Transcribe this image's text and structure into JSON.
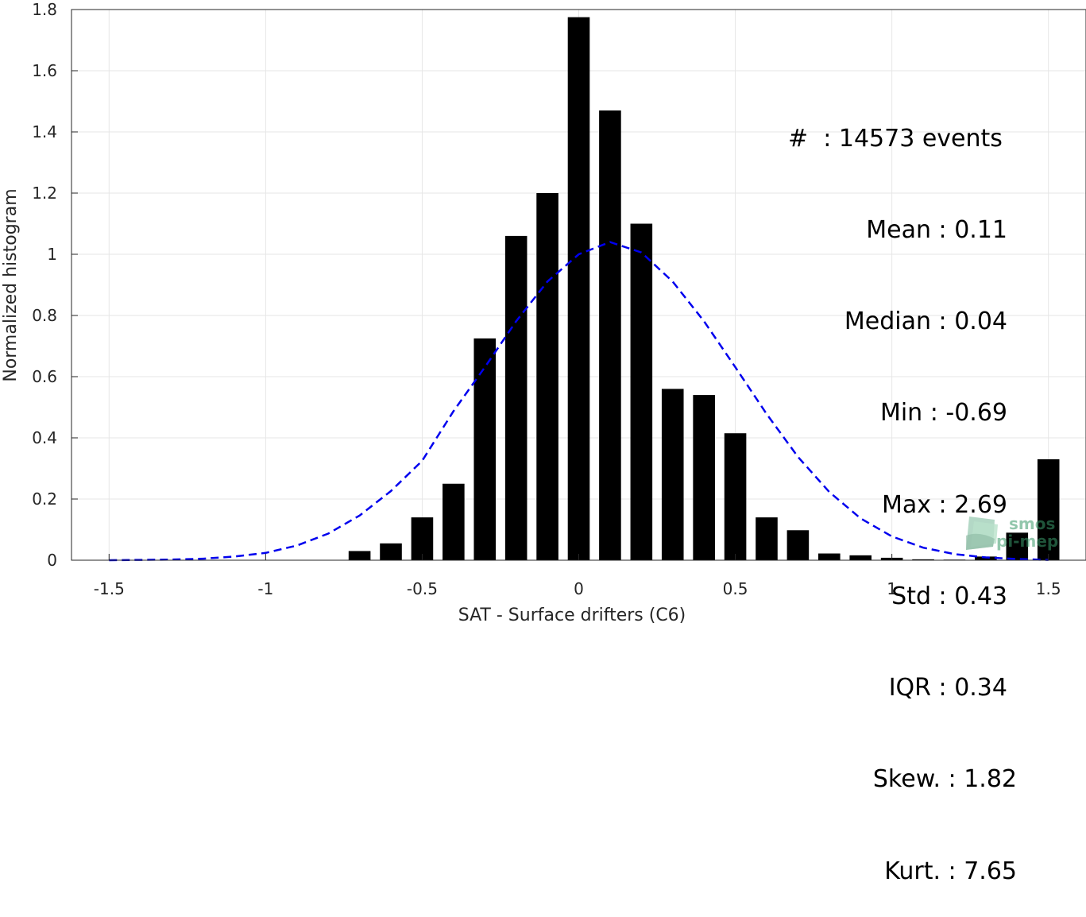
{
  "chart_data": {
    "type": "bar",
    "xlabel": "SAT - Surface drifters (C6)",
    "ylabel": "Normalized histogram",
    "xlim": [
      -1.62,
      1.62
    ],
    "ylim": [
      0,
      1.8
    ],
    "xticks": [
      -1.5,
      -1,
      -0.5,
      0,
      0.5,
      1,
      1.5
    ],
    "xtick_labels": [
      "-1.5",
      "-1",
      "-0.5",
      "0",
      "0.5",
      "1",
      "1.5"
    ],
    "yticks": [
      0,
      0.2,
      0.4,
      0.6,
      0.8,
      1,
      1.2,
      1.4,
      1.6,
      1.8
    ],
    "ytick_labels": [
      "0",
      "0.2",
      "0.4",
      "0.6",
      "0.8",
      "1",
      "1.2",
      "1.4",
      "1.6",
      "1.8"
    ],
    "grid": true,
    "bar_color": "#000000",
    "fit_color": "#0000ee",
    "x": [
      -0.7,
      -0.6,
      -0.5,
      -0.4,
      -0.3,
      -0.2,
      -0.1,
      0.0,
      0.1,
      0.2,
      0.3,
      0.4,
      0.5,
      0.6,
      0.7,
      0.8,
      0.9,
      1.0,
      1.1,
      1.2,
      1.3,
      1.4,
      1.5
    ],
    "values": [
      0.03,
      0.055,
      0.14,
      0.25,
      0.725,
      1.06,
      1.2,
      1.775,
      1.47,
      1.1,
      0.56,
      0.54,
      0.415,
      0.14,
      0.098,
      0.022,
      0.016,
      0.008,
      0.003,
      0.002,
      0.012,
      0.09,
      0.33
    ],
    "fit": {
      "type": "line",
      "style": "dashed",
      "name": "",
      "x": [
        -1.5,
        -1.4,
        -1.3,
        -1.2,
        -1.1,
        -1.0,
        -0.9,
        -0.8,
        -0.7,
        -0.6,
        -0.5,
        -0.4,
        -0.3,
        -0.2,
        -0.1,
        0.0,
        0.1,
        0.2,
        0.3,
        0.4,
        0.5,
        0.6,
        0.7,
        0.8,
        0.9,
        1.0,
        1.1,
        1.2,
        1.3,
        1.4,
        1.5
      ],
      "y": [
        0.0,
        0.001,
        0.002,
        0.005,
        0.012,
        0.024,
        0.048,
        0.087,
        0.146,
        0.226,
        0.325,
        0.487,
        0.631,
        0.781,
        0.911,
        1.0,
        1.04,
        1.006,
        0.911,
        0.781,
        0.631,
        0.478,
        0.338,
        0.223,
        0.137,
        0.078,
        0.041,
        0.02,
        0.009,
        0.004,
        0.001
      ]
    },
    "stats_labels": [
      "#  : 14573 events",
      "Mean : 0.11",
      "Median : 0.04",
      "Min : -0.69",
      "Max : 2.69",
      "Std : 0.43",
      "IQR : 0.34",
      "Skew. : 1.82",
      "Kurt. : 7.65"
    ],
    "watermark": {
      "line1": "smos",
      "line2": "pi-mep",
      "color": "#3a9a6a"
    }
  }
}
